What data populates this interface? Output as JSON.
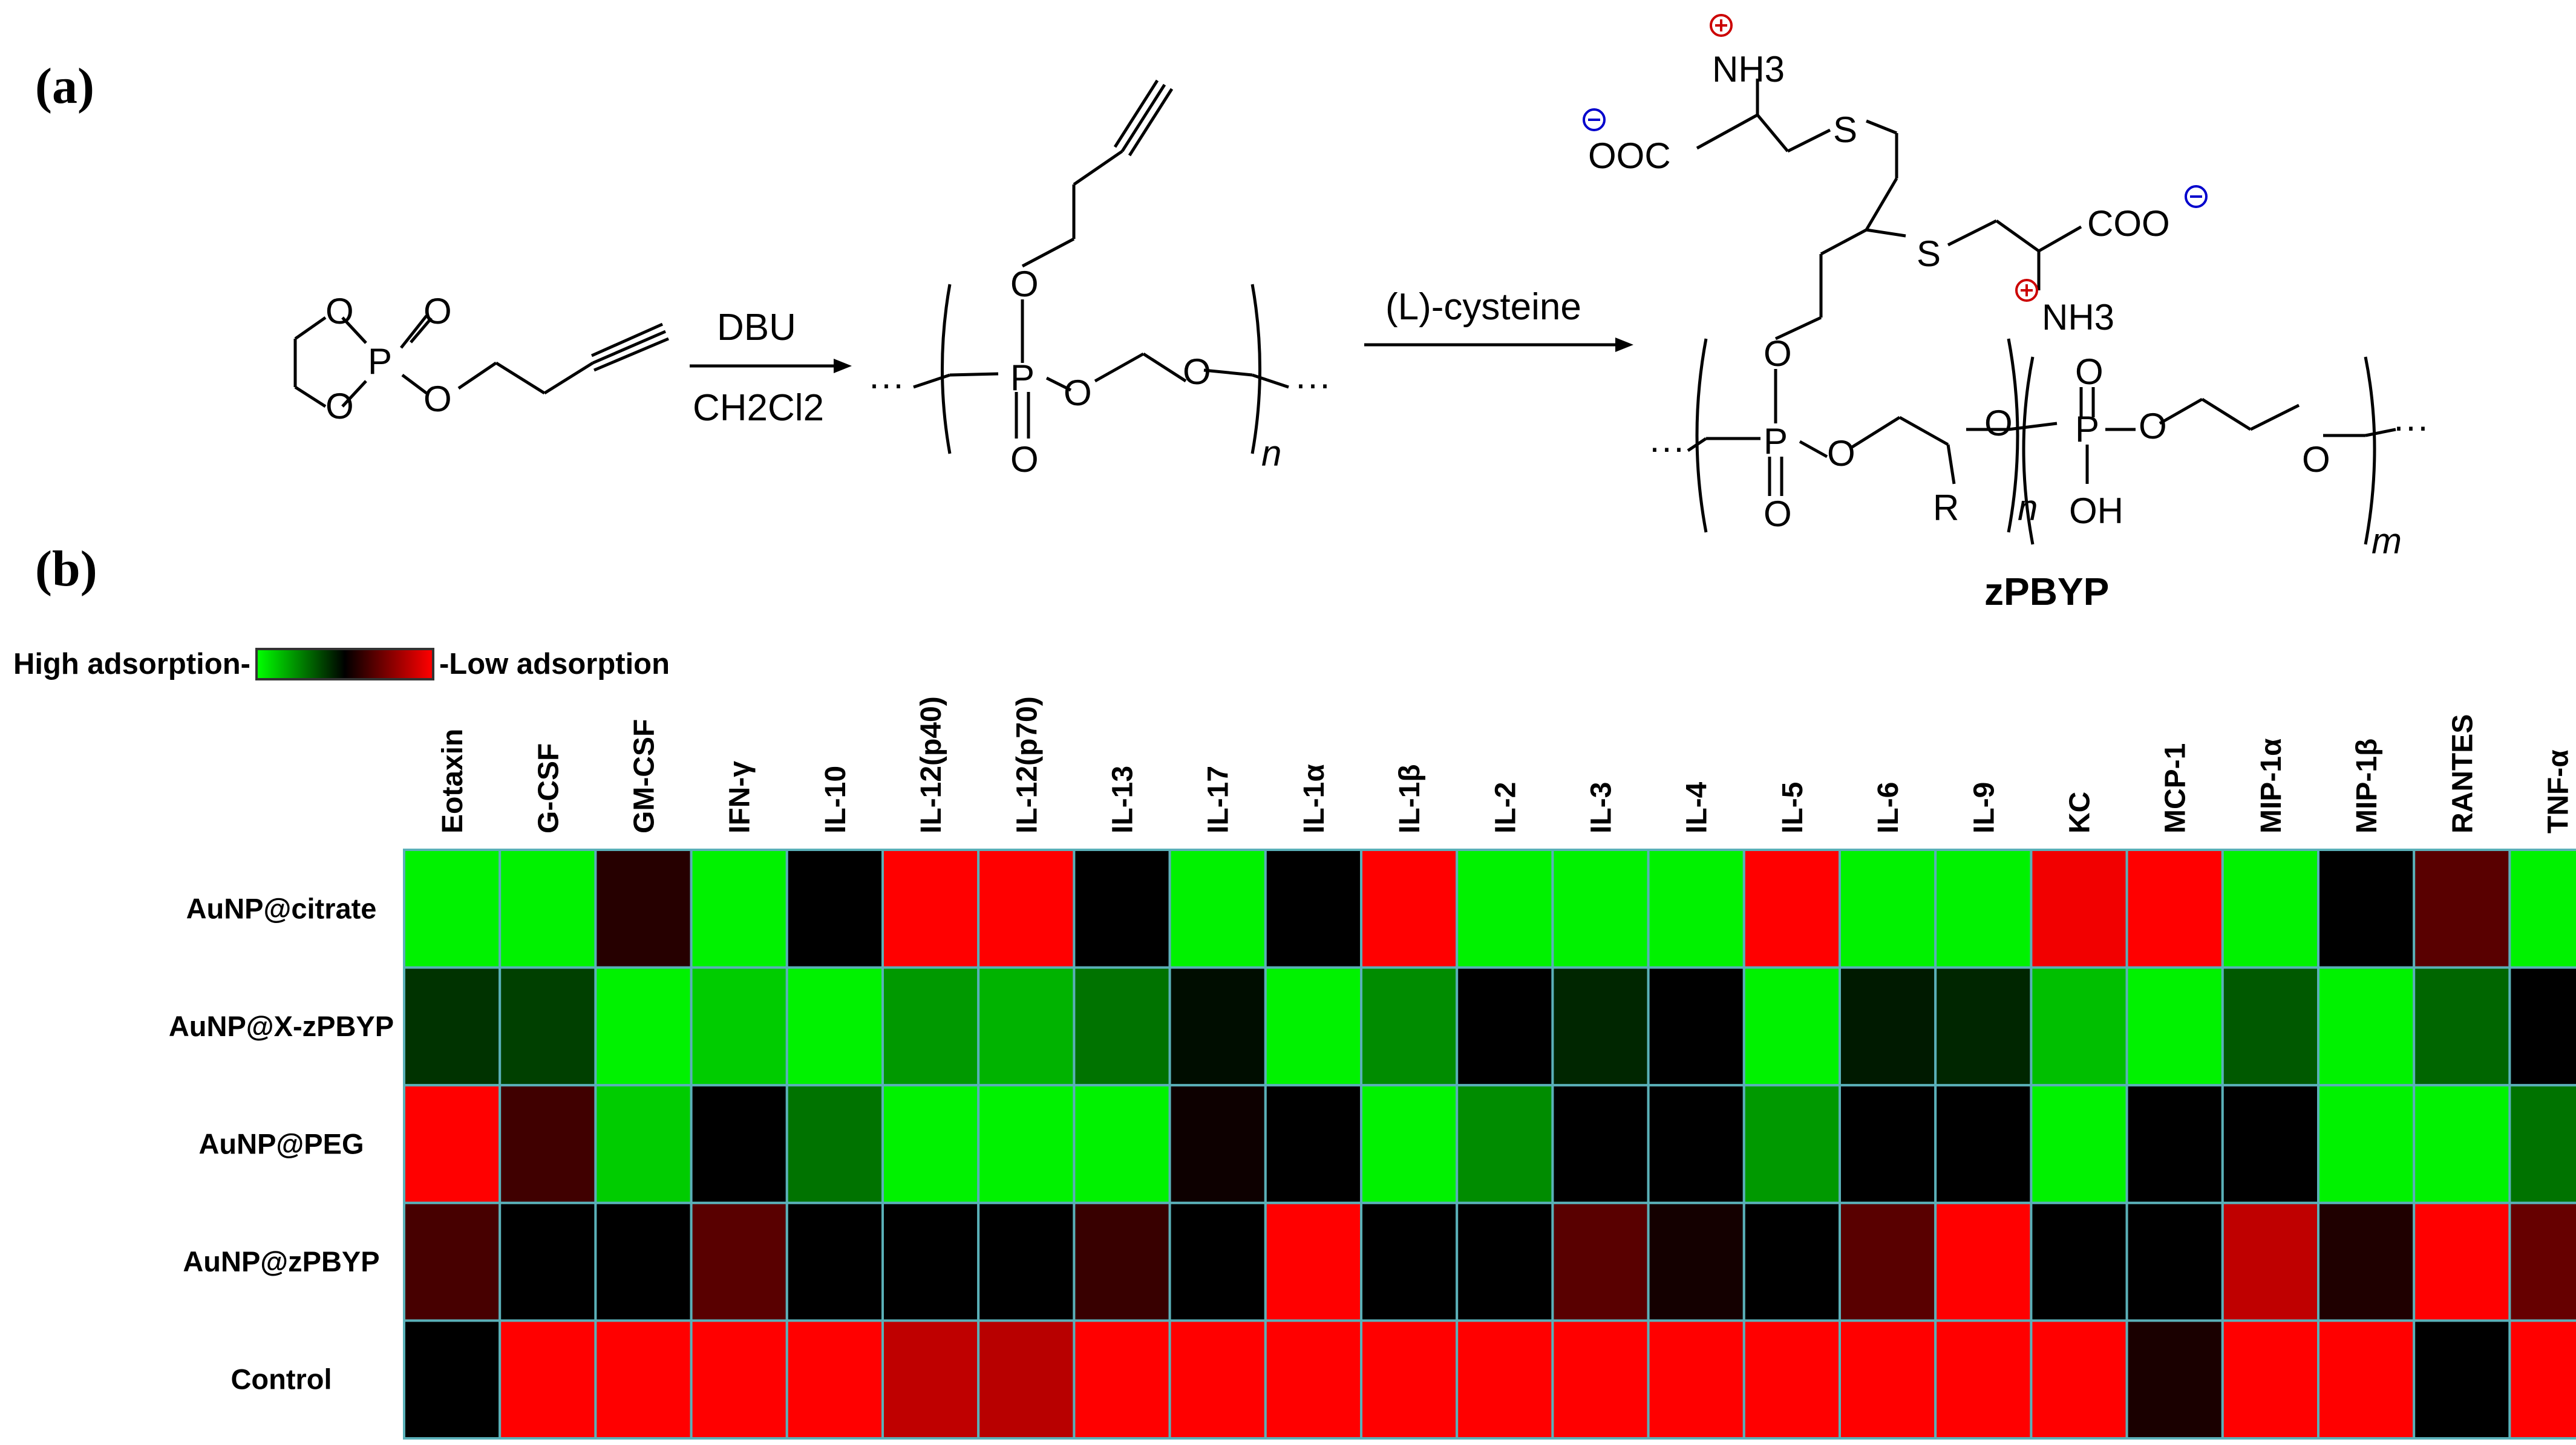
{
  "panel_labels": {
    "a": "(a)",
    "b": "(b)"
  },
  "scheme": {
    "reagent1_top": "DBU",
    "reagent1_bottom": "CH2Cl2",
    "reagent2": "(L)-cysteine",
    "product_name": "zPBYP",
    "repeat_n": "n",
    "repeat_m": "m",
    "ellipsis": "···",
    "atoms": {
      "O": "O",
      "P": "P",
      "S": "S",
      "R": "R",
      "OH": "OH",
      "NH3": "NH3",
      "COO": "COO",
      "OOC": "OOC"
    }
  },
  "legend": {
    "high": "High adsorption",
    "low": "Low adsorption"
  },
  "chart_data": {
    "type": "heatmap",
    "columns": [
      "Eotaxin",
      "G-CSF",
      "GM-CSF",
      "IFN-γ",
      "IL-10",
      "IL-12(p40)",
      "IL-12(p70)",
      "IL-13",
      "IL-17",
      "IL-1α",
      "IL-1β",
      "IL-2",
      "IL-3",
      "IL-4",
      "IL-5",
      "IL-6",
      "IL-9",
      "KC",
      "MCP-1",
      "MIP-1α",
      "MIP-1β",
      "RANTES",
      "TNF-α"
    ],
    "rows": [
      "AuNP@citrate",
      "AuNP@X-zPBYP",
      "AuNP@PEG",
      "AuNP@zPBYP",
      "Control"
    ],
    "scale": {
      "min_label": "High adsorption",
      "max_label": "Low adsorption",
      "colors": [
        "#00ff00",
        "#000000",
        "#ff0000"
      ],
      "range": [
        -1,
        1
      ]
    },
    "values": [
      [
        -0.95,
        -0.95,
        0.15,
        -0.95,
        0.0,
        1.0,
        1.0,
        0.0,
        -0.95,
        0.0,
        1.0,
        -0.95,
        -0.95,
        -0.95,
        1.0,
        -0.95,
        -0.95,
        0.95,
        1.0,
        -0.95,
        0.0,
        0.35,
        -0.95
      ],
      [
        -0.2,
        -0.25,
        -0.95,
        -0.8,
        -0.95,
        -0.6,
        -0.7,
        -0.45,
        -0.05,
        -0.95,
        -0.55,
        0.0,
        -0.15,
        0.0,
        -0.95,
        -0.1,
        -0.15,
        -0.75,
        -0.95,
        -0.35,
        -0.95,
        -0.4,
        0.0
      ],
      [
        1.0,
        0.25,
        -0.8,
        0.0,
        -0.45,
        -0.95,
        -0.95,
        -0.95,
        0.05,
        0.0,
        -0.95,
        -0.55,
        0.0,
        0.0,
        -0.6,
        0.0,
        0.0,
        -0.95,
        0.0,
        0.0,
        -0.95,
        -0.95,
        -0.45
      ],
      [
        0.28,
        0.0,
        0.0,
        0.35,
        0.0,
        0.0,
        0.0,
        0.22,
        0.0,
        1.0,
        0.0,
        0.0,
        0.35,
        0.08,
        0.0,
        0.35,
        1.0,
        0.0,
        0.0,
        0.75,
        0.12,
        1.0,
        0.4
      ],
      [
        0.0,
        1.0,
        1.0,
        1.0,
        1.0,
        0.75,
        0.72,
        1.0,
        1.0,
        1.0,
        1.0,
        1.0,
        1.0,
        1.0,
        1.0,
        1.0,
        1.0,
        1.0,
        0.1,
        1.0,
        1.0,
        0.0,
        1.0
      ]
    ]
  }
}
